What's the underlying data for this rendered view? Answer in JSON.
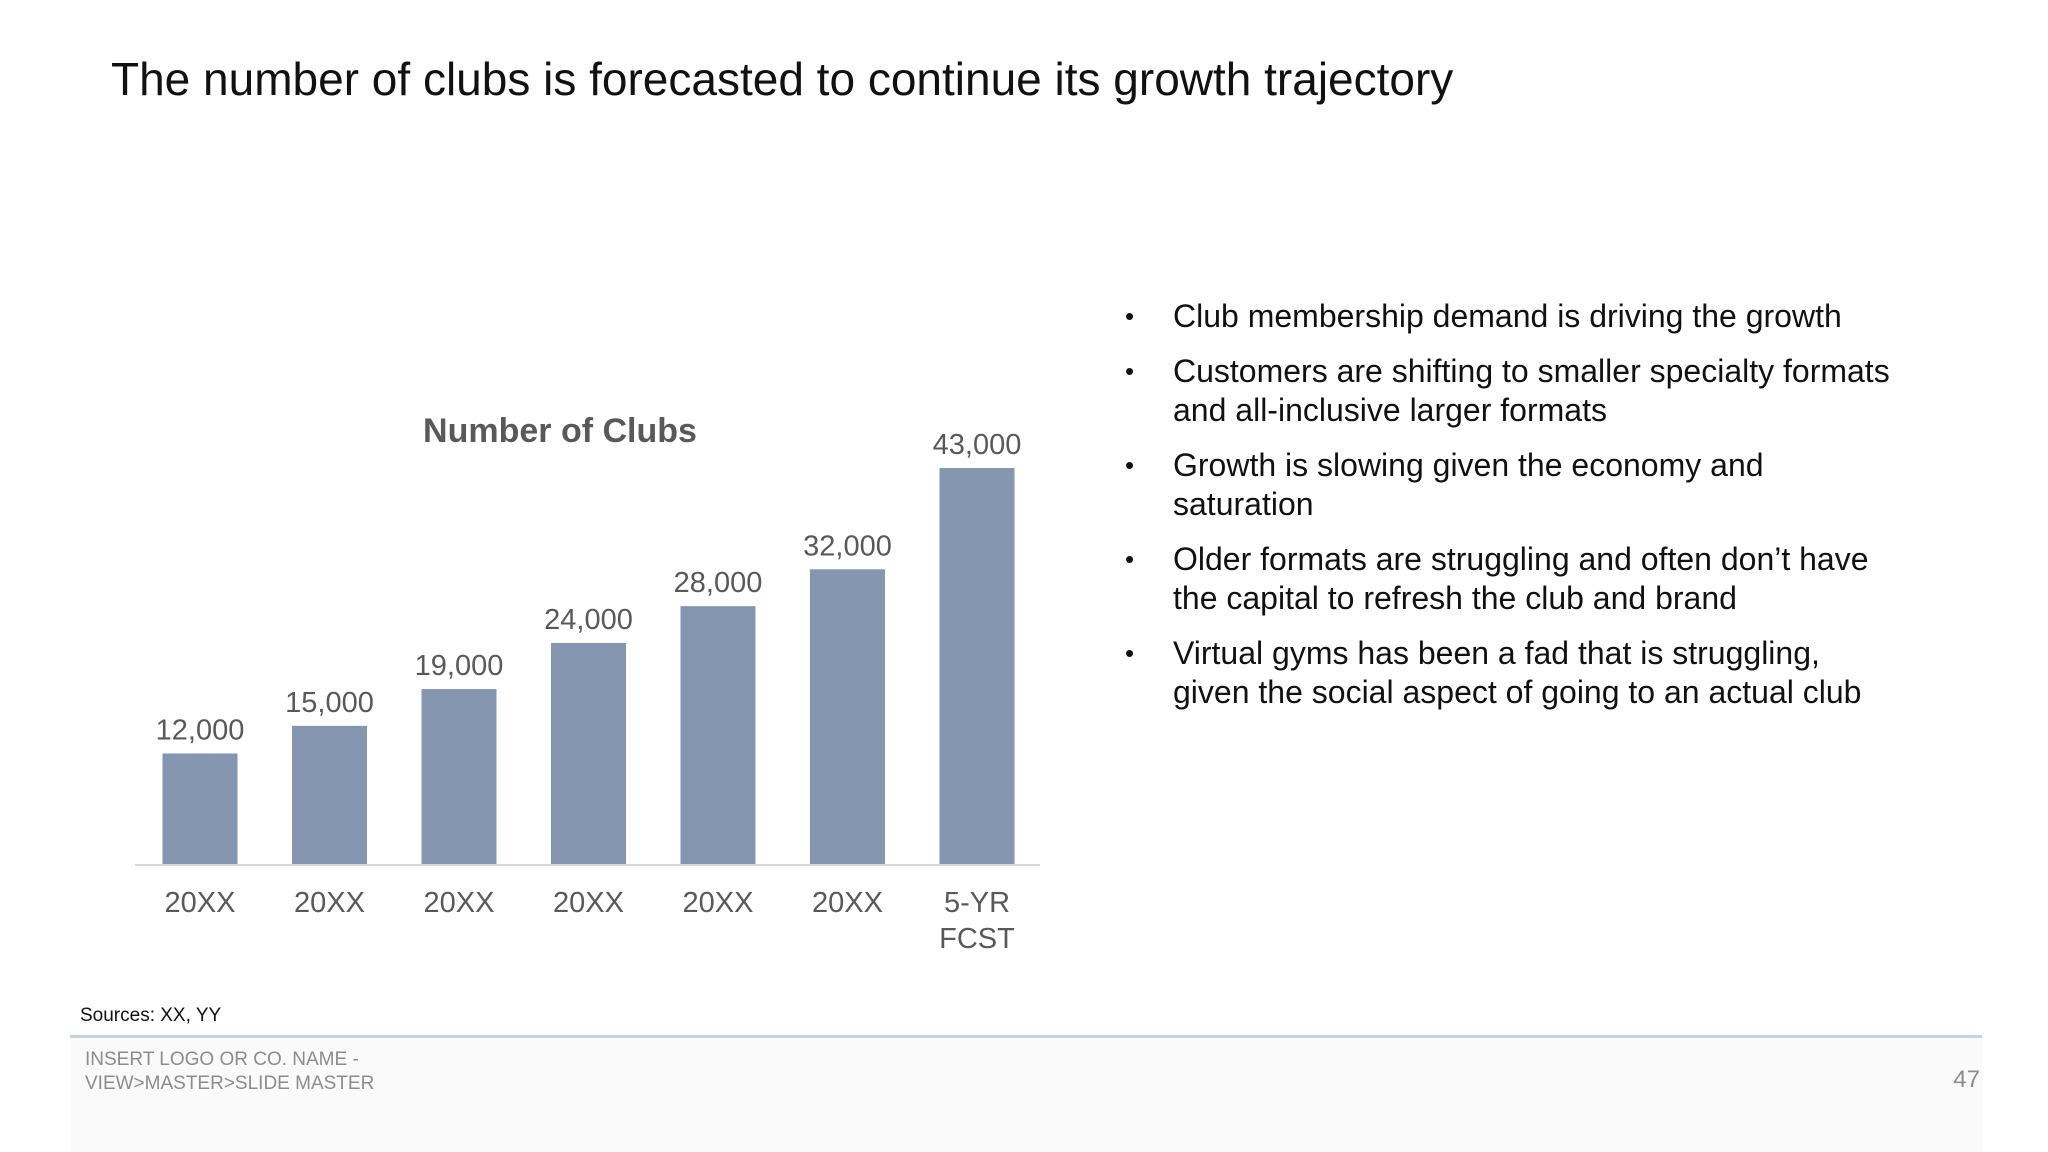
{
  "slide": {
    "title": "The number of clubs is forecasted to continue its growth trajectory",
    "bullets": [
      "Club membership demand is driving the growth",
      "Customers are shifting to smaller specialty formats and all-inclusive larger formats",
      "Growth is slowing given the economy and saturation",
      "Older formats are struggling and often don’t have the capital to refresh the club and brand",
      "Virtual gyms has been a fad that is struggling, given the social aspect of going to an actual club"
    ],
    "bullet_glyph": "•",
    "sources": "Sources: XX, YY",
    "footer": {
      "logo_line1": "INSERT LOGO OR CO. NAME -",
      "logo_line2": "VIEW>MASTER>SLIDE MASTER",
      "page_number": "47"
    }
  },
  "chart_data": {
    "type": "bar",
    "title": "Number of Clubs",
    "categories": [
      "20XX",
      "20XX",
      "20XX",
      "20XX",
      "20XX",
      "20XX",
      "5-YR\nFCST"
    ],
    "values": [
      12000,
      15000,
      19000,
      24000,
      28000,
      32000,
      43000
    ],
    "value_labels": [
      "12,000",
      "15,000",
      "19,000",
      "24,000",
      "28,000",
      "32,000",
      "43,000"
    ],
    "xlabel": "",
    "ylabel": "",
    "ylim": [
      0,
      43000
    ],
    "grid": false,
    "legend": "none",
    "colors": {
      "bar": "#8496b0",
      "axis": "#d9d9d9",
      "label": "#595959",
      "title": "#595959"
    }
  }
}
